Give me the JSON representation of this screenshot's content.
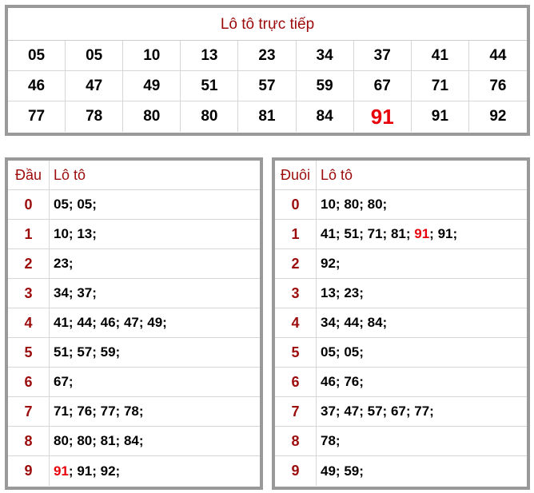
{
  "live": {
    "title": "Lô tô trực tiếp",
    "numbers": [
      "05",
      "05",
      "10",
      "13",
      "23",
      "34",
      "37",
      "41",
      "44",
      "46",
      "47",
      "49",
      "51",
      "57",
      "59",
      "67",
      "71",
      "76",
      "77",
      "78",
      "80",
      "80",
      "81",
      "84",
      "91",
      "91",
      "92"
    ],
    "highlight_index": 24
  },
  "dau": {
    "header_key": "Đầu",
    "header_val": "Lô tô",
    "rows": [
      {
        "key": "0",
        "nums": [
          "05",
          "05"
        ]
      },
      {
        "key": "1",
        "nums": [
          "10",
          "13"
        ]
      },
      {
        "key": "2",
        "nums": [
          "23"
        ]
      },
      {
        "key": "3",
        "nums": [
          "34",
          "37"
        ]
      },
      {
        "key": "4",
        "nums": [
          "41",
          "44",
          "46",
          "47",
          "49"
        ]
      },
      {
        "key": "5",
        "nums": [
          "51",
          "57",
          "59"
        ]
      },
      {
        "key": "6",
        "nums": [
          "67"
        ]
      },
      {
        "key": "7",
        "nums": [
          "71",
          "76",
          "77",
          "78"
        ]
      },
      {
        "key": "8",
        "nums": [
          "80",
          "80",
          "81",
          "84"
        ]
      },
      {
        "key": "9",
        "nums": [
          "91",
          "91",
          "92"
        ],
        "hot": [
          0
        ]
      }
    ]
  },
  "duoi": {
    "header_key": "Đuôi",
    "header_val": "Lô tô",
    "rows": [
      {
        "key": "0",
        "nums": [
          "10",
          "80",
          "80"
        ]
      },
      {
        "key": "1",
        "nums": [
          "41",
          "51",
          "71",
          "81",
          "91",
          "91"
        ],
        "hot": [
          4
        ]
      },
      {
        "key": "2",
        "nums": [
          "92"
        ]
      },
      {
        "key": "3",
        "nums": [
          "13",
          "23"
        ]
      },
      {
        "key": "4",
        "nums": [
          "34",
          "44",
          "84"
        ]
      },
      {
        "key": "5",
        "nums": [
          "05",
          "05"
        ]
      },
      {
        "key": "6",
        "nums": [
          "46",
          "76"
        ]
      },
      {
        "key": "7",
        "nums": [
          "37",
          "47",
          "57",
          "67",
          "77"
        ]
      },
      {
        "key": "8",
        "nums": [
          "78"
        ]
      },
      {
        "key": "9",
        "nums": [
          "49",
          "59"
        ]
      }
    ]
  },
  "colors": {
    "title": "#9c0b0b",
    "highlight": "#e8000b",
    "border": "#999999"
  }
}
